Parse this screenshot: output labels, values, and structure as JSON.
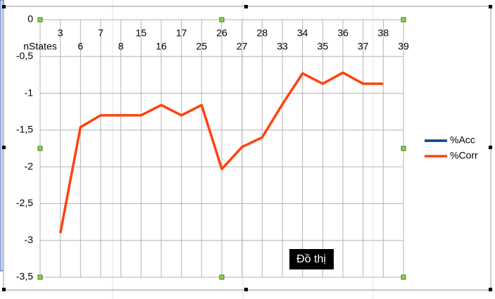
{
  "chart_data": {
    "type": "line",
    "x_label": "nStates",
    "categories": [
      "3",
      "6",
      "7",
      "8",
      "15",
      "16",
      "17",
      "25",
      "26",
      "27",
      "28",
      "33",
      "34",
      "35",
      "36",
      "37",
      "38",
      "39"
    ],
    "series": [
      {
        "name": "%Acc",
        "color": "#004586",
        "values": [
          null,
          null,
          null,
          null,
          null,
          null,
          null,
          null,
          null,
          null,
          null,
          null,
          null,
          null,
          null,
          null,
          null,
          null
        ]
      },
      {
        "name": "%Corr",
        "color": "#ff420e",
        "values": [
          -2.9,
          -1.46,
          -1.3,
          -1.3,
          -1.3,
          -1.16,
          -1.3,
          -1.16,
          -2.03,
          -1.73,
          -1.6,
          -1.15,
          -0.73,
          -0.87,
          -0.72,
          -0.87,
          -0.87,
          null
        ]
      }
    ],
    "ylim": [
      -3.5,
      0
    ],
    "yticks": [
      0,
      {
        "value": -0.5,
        "label": "-0,5"
      },
      -1,
      {
        "value": -1.5,
        "label": "-1,5"
      },
      -2,
      {
        "value": -2.5,
        "label": "-2,5"
      },
      -3,
      {
        "value": -3.5,
        "label": "-3,5"
      }
    ],
    "grid": true,
    "legend": "right",
    "tooltip": "Đồ thị"
  }
}
